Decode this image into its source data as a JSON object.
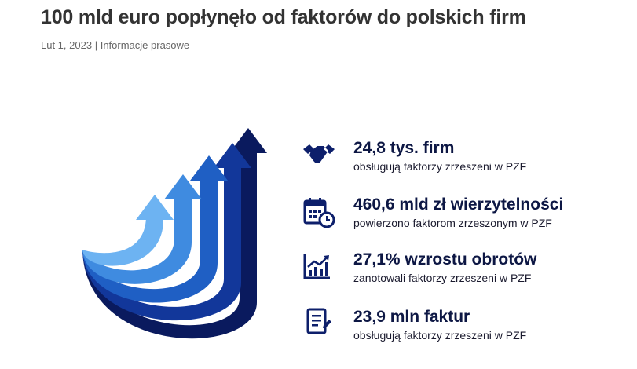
{
  "header": {
    "title": "100 mld euro popłynęło od faktorów do polskich firm",
    "date": "Lut 1, 2023",
    "separator": "|",
    "category": "Informacje prasowe"
  },
  "stats": [
    {
      "headline": "24,8 tys. firm",
      "description": "obsługują faktorzy zrzeszeni w PZF"
    },
    {
      "headline": "460,6 mld zł wierzytelności",
      "description": "powierzono faktorom zrzeszonym w PZF"
    },
    {
      "headline": "27,1% wzrostu obrotów",
      "description": "zanotowali faktorzy zrzeszeni w PZF"
    },
    {
      "headline": "23,9 mln faktur",
      "description": "obsługują faktorzy zrzeszeni w PZF"
    }
  ]
}
